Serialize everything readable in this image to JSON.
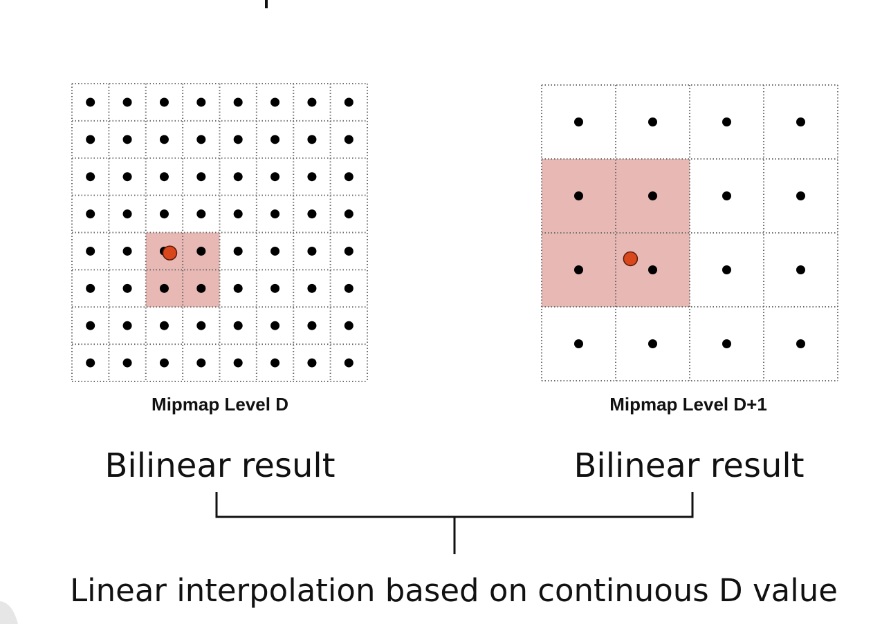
{
  "colors": {
    "highlight": "#e7b8b4",
    "sample_point": "#d9481c",
    "texel_dot": "#000000",
    "background": "#ffffff"
  },
  "level_d": {
    "caption": "Mipmap Level D",
    "rows": 8,
    "cols": 8,
    "highlight": {
      "col_start": 2,
      "row_start": 4,
      "cols": 2,
      "rows": 2
    },
    "sample": {
      "col": 2.65,
      "row": 4.55
    }
  },
  "level_d1": {
    "caption": "Mipmap Level D+1",
    "rows": 4,
    "cols": 4,
    "highlight": {
      "col_start": 0,
      "row_start": 1,
      "cols": 2,
      "rows": 2
    },
    "sample": {
      "col": 1.2,
      "row": 2.35
    }
  },
  "results": {
    "left": "Bilinear result",
    "right": "Bilinear result"
  },
  "bottom_text": "Linear interpolation based on continuous D value"
}
